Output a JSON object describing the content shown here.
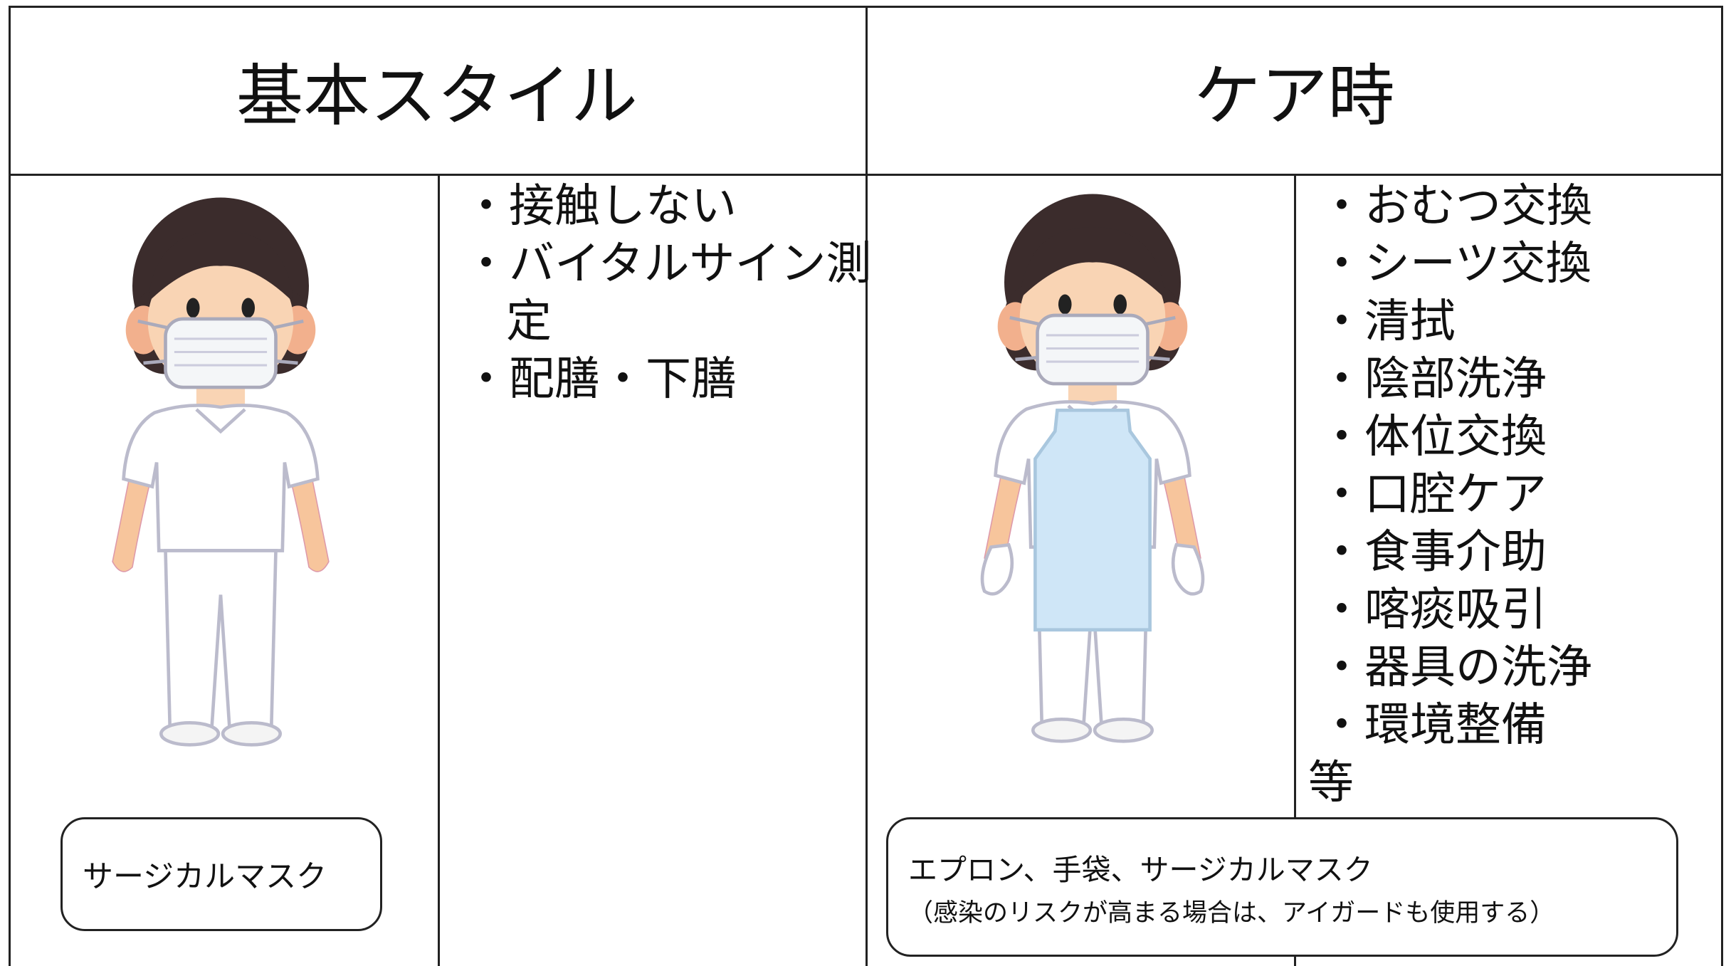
{
  "columns": [
    {
      "title": "基本スタイル",
      "items": [
        "・接触しない",
        "・バイタルサイン測定",
        "・配膳・下膳"
      ],
      "note": "サージカルマスク"
    },
    {
      "title": "ケア時",
      "items": [
        "・おむつ交換",
        "・シーツ交換",
        "・清拭",
        "・陰部洗浄",
        "・体位交換",
        "・口腔ケア",
        "・食事介助",
        "・喀痰吸引",
        "・器具の洗浄",
        "・環境整備"
      ],
      "suffix": "等",
      "note": "エプロン、手袋、サージカルマスク",
      "note_sub": "（感染のリスクが高まる場合は、アイガードも使用する）"
    }
  ]
}
